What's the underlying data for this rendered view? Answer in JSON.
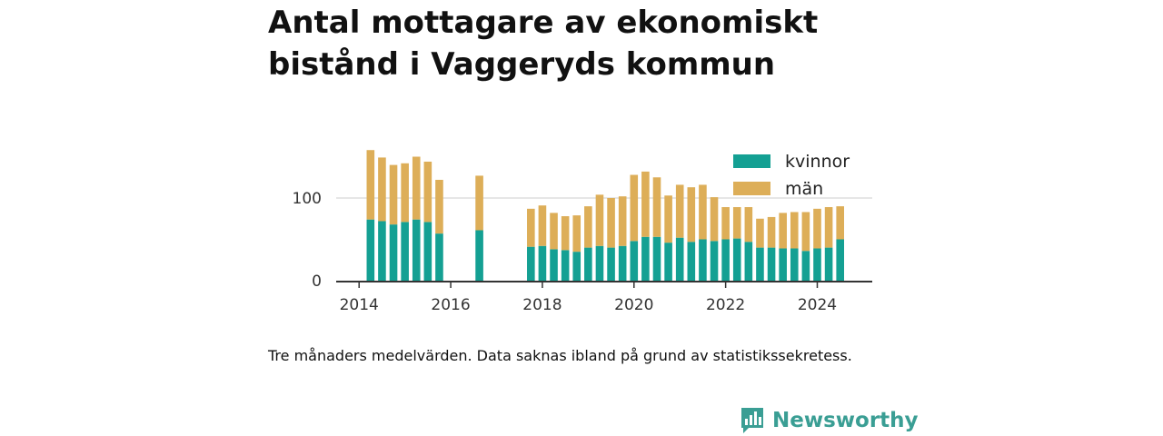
{
  "title": "Antal mottagare av ekonomiskt bistånd i Vaggeryds kommun",
  "caption": "Tre månaders medelvärden. Data saknas ibland på grund av statistikssekretess.",
  "brand": {
    "name": "Newsworthy",
    "icon": "newsworthy-logo-icon"
  },
  "colors": {
    "kvinnor": "#14a093",
    "man": "#ddae58",
    "gridline": "#dddddd",
    "axis": "#333333",
    "brand": "#3a9e94"
  },
  "chart_data": {
    "type": "bar",
    "stacked": true,
    "title": "Antal mottagare av ekonomiskt bistånd i Vaggeryds kommun",
    "xlabel": "",
    "ylabel": "",
    "ylim": [
      0,
      160
    ],
    "xlim": [
      2013.5,
      2025.2
    ],
    "yticks": [
      0,
      100
    ],
    "xticks": [
      2014,
      2016,
      2018,
      2020,
      2022,
      2024
    ],
    "grid": true,
    "legend_position": "top-right",
    "x": [
      2014.25,
      2014.5,
      2014.75,
      2015.0,
      2015.25,
      2015.5,
      2015.75,
      2016.625,
      2017.75,
      2018.0,
      2018.25,
      2018.5,
      2018.75,
      2019.0,
      2019.25,
      2019.5,
      2019.75,
      2020.0,
      2020.25,
      2020.5,
      2020.75,
      2021.0,
      2021.25,
      2021.5,
      2021.75,
      2022.0,
      2022.25,
      2022.5,
      2022.75,
      2023.0,
      2023.25,
      2023.5,
      2023.75,
      2024.0,
      2024.25,
      2024.5
    ],
    "series": [
      {
        "name": "kvinnor",
        "values": [
          74,
          72,
          68,
          71,
          74,
          71,
          57,
          61,
          41,
          42,
          38,
          37,
          35,
          40,
          42,
          40,
          42,
          48,
          53,
          53,
          46,
          52,
          47,
          50,
          48,
          50,
          51,
          47,
          40,
          40,
          39,
          39,
          36,
          39,
          40,
          50
        ]
      },
      {
        "name": "män",
        "values": [
          84,
          77,
          72,
          71,
          76,
          73,
          65,
          66,
          46,
          49,
          44,
          41,
          44,
          50,
          62,
          60,
          60,
          80,
          79,
          72,
          57,
          64,
          66,
          66,
          53,
          39,
          38,
          42,
          35,
          37,
          43,
          44,
          47,
          48,
          49,
          40
        ]
      }
    ]
  }
}
